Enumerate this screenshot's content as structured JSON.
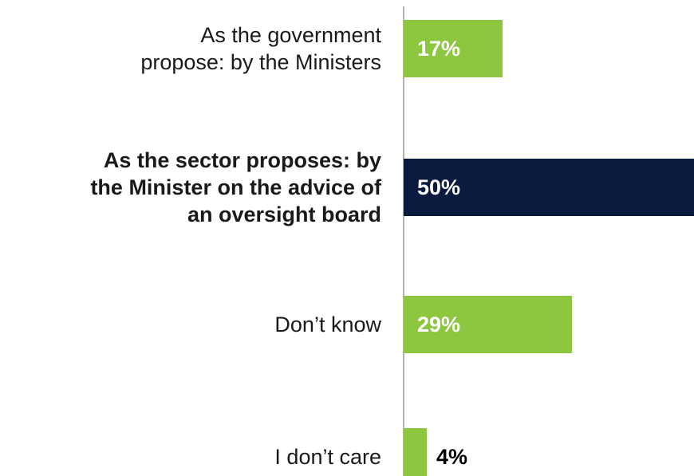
{
  "chart_data": {
    "type": "bar",
    "orientation": "horizontal",
    "categories": [
      [
        "As the government",
        "propose: by the Ministers"
      ],
      [
        "As the sector proposes: by",
        "the Minister on the advice of",
        "an oversight board"
      ],
      [
        "Don’t know"
      ],
      [
        "I don’t care"
      ]
    ],
    "values": [
      17,
      50,
      29,
      4
    ],
    "value_labels": [
      "17%",
      "50%",
      "29%",
      "4%"
    ],
    "highlight_index": 1,
    "xlim": [
      0,
      50
    ],
    "grid": false,
    "legend": "none"
  },
  "colors": {
    "bar": "#8dc63f",
    "highlight_bar": "#0b1a3f",
    "label_inside": "#ffffff",
    "label_outside": "#000000",
    "category_text": "#1a1a1a",
    "axis": "#9a9a9a"
  }
}
